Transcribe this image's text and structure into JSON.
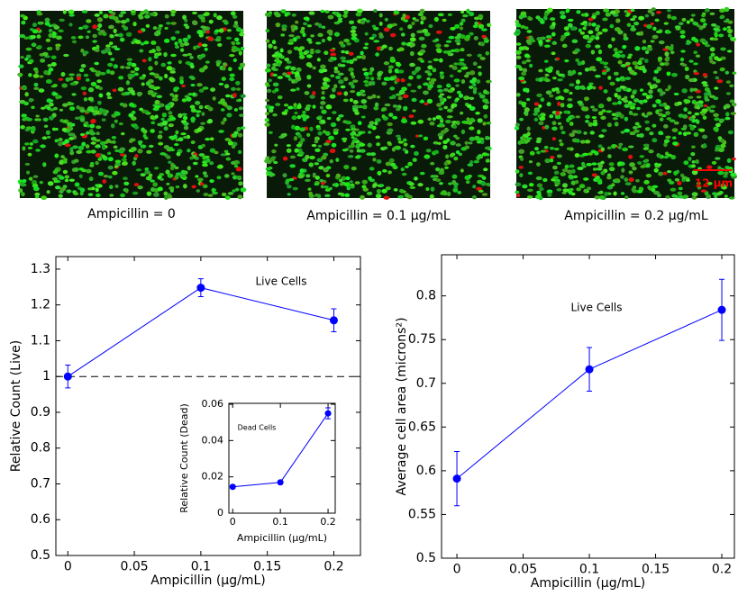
{
  "images": [
    {
      "caption": "Ampicillin = 0"
    },
    {
      "caption": "Ampicillin = 0.1 µg/mL"
    },
    {
      "caption": "Ampicillin = 0.2 µg/mL",
      "scale_bar": "12 µm"
    }
  ],
  "chart_data": [
    {
      "type": "line",
      "x_label": "Ampicillin (µg/mL)",
      "y_label": "Relative Count (Live)",
      "annotation": "Live Cells",
      "x": [
        0,
        0.1,
        0.2
      ],
      "series": [
        {
          "name": "Live Cells",
          "color": "#0000ff",
          "values": [
            1.0,
            1.248,
            1.157
          ],
          "errors": [
            0.032,
            0.025,
            0.032
          ]
        }
      ],
      "reference_line": 1,
      "xlim": [
        -0.009,
        0.22
      ],
      "ylim": [
        0.5,
        1.335
      ],
      "xticks": [
        0,
        0.05,
        0.1,
        0.15,
        0.2
      ],
      "yticks": [
        0.5,
        0.6,
        0.7,
        0.8,
        0.9,
        1,
        1.1,
        1.2,
        1.3
      ]
    },
    {
      "type": "line",
      "x_label": "Ampicillin (µg/mL)",
      "y_label": "Relative Count (Dead)",
      "annotation": "Dead Cells",
      "x": [
        0,
        0.1,
        0.2
      ],
      "series": [
        {
          "name": "Dead Cells",
          "color": "#0000ff",
          "values": [
            0.0145,
            0.017,
            0.055
          ],
          "errors": [
            0.0008,
            0.0008,
            0.003
          ]
        }
      ],
      "xlim": [
        -0.008,
        0.215
      ],
      "ylim": [
        0,
        0.0605
      ],
      "xticks": [
        0,
        0.1,
        0.2
      ],
      "yticks": [
        0,
        0.02,
        0.04,
        0.06
      ]
    },
    {
      "type": "line",
      "x_label": "Ampicillin (µg/mL)",
      "y_label": "Average cell area (microns²)",
      "annotation": "Live Cells",
      "x": [
        0,
        0.1,
        0.2
      ],
      "series": [
        {
          "name": "Live Cells",
          "color": "#0000ff",
          "values": [
            0.591,
            0.716,
            0.784
          ],
          "errors": [
            0.031,
            0.025,
            0.035
          ]
        }
      ],
      "xlim": [
        -0.0116,
        0.2095
      ],
      "ylim": [
        0.5,
        0.847
      ],
      "xticks": [
        0,
        0.05,
        0.1,
        0.15,
        0.2
      ],
      "yticks": [
        0.5,
        0.55,
        0.6,
        0.65,
        0.7,
        0.75,
        0.8
      ]
    }
  ]
}
